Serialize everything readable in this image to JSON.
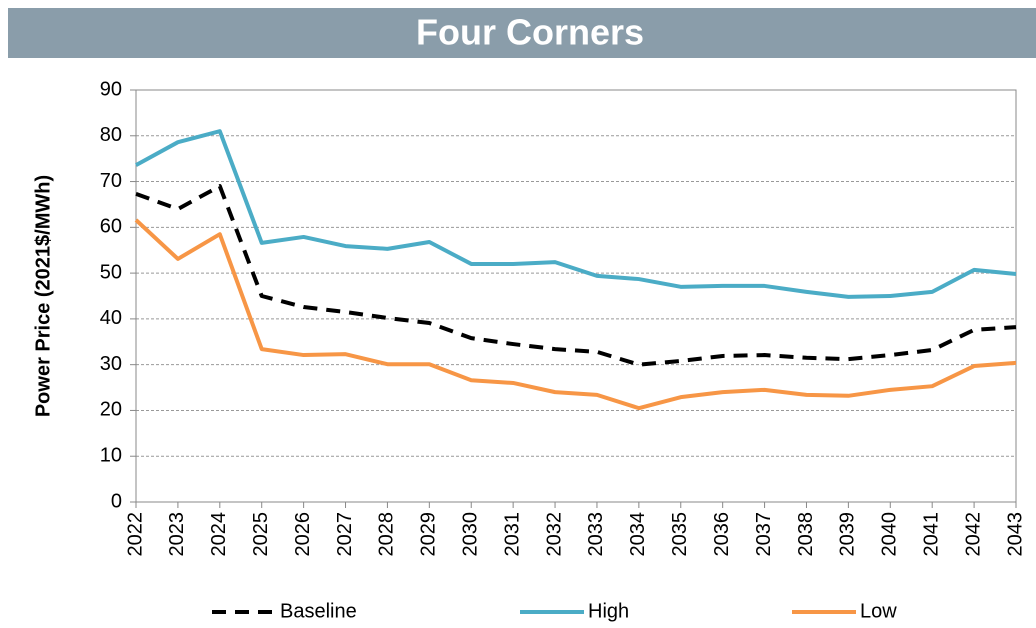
{
  "chart_data": {
    "type": "line",
    "title": "Four Corners",
    "y_label": "Power Price (2021$/MWh)",
    "categories": [
      "2022",
      "2023",
      "2024",
      "2025",
      "2026",
      "2027",
      "2028",
      "2029",
      "2030",
      "2031",
      "2032",
      "2033",
      "2034",
      "2035",
      "2036",
      "2037",
      "2038",
      "2039",
      "2040",
      "2041",
      "2042",
      "2043"
    ],
    "series": [
      {
        "name": "Baseline",
        "color": "#000000",
        "line_style": "dashed",
        "values": [
          67.3,
          64,
          69,
          45,
          42.6,
          41.5,
          40.2,
          39.1,
          35.8,
          34.5,
          33.4,
          32.8,
          30,
          30.8,
          31.9,
          32.1,
          31.5,
          31.2,
          32.1,
          33.2,
          37.6,
          38.2
        ]
      },
      {
        "name": "High",
        "color": "#4bacc6",
        "line_style": "solid",
        "values": [
          73.6,
          78.6,
          81,
          56.6,
          57.9,
          55.9,
          55.3,
          56.8,
          52,
          52,
          52.4,
          49.4,
          48.7,
          47,
          47.2,
          47.2,
          45.9,
          44.8,
          45,
          45.9,
          50.7,
          49.8
        ]
      },
      {
        "name": "Low",
        "color": "#f79646",
        "line_style": "solid",
        "values": [
          61.6,
          53.1,
          58.5,
          33.4,
          32.1,
          32.3,
          30.1,
          30.1,
          26.6,
          26,
          24,
          23.4,
          20.5,
          22.9,
          24,
          24.5,
          23.4,
          23.2,
          24.5,
          25.3,
          29.7,
          30.4
        ]
      }
    ],
    "ylim": [
      0,
      90
    ],
    "yticks": [
      0,
      10,
      20,
      30,
      40,
      50,
      60,
      70,
      80,
      90
    ],
    "grid": true,
    "legend": "bottom"
  }
}
